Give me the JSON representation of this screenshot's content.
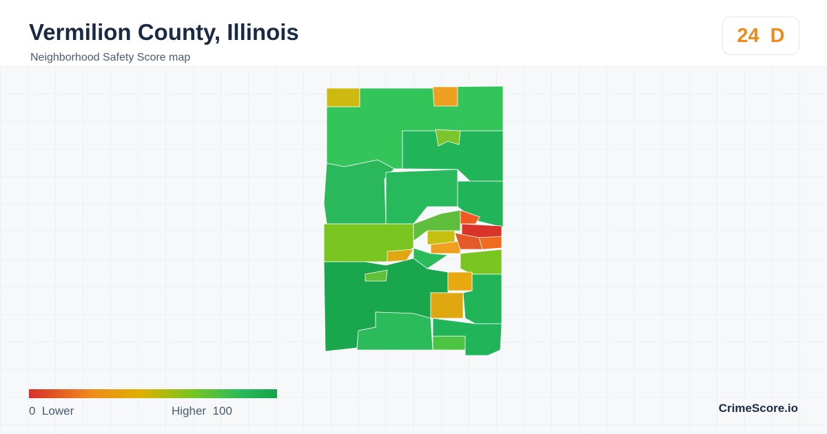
{
  "header": {
    "title": "Vermilion County, Illinois",
    "subtitle": "Neighborhood Safety Score map"
  },
  "score": {
    "value": "24",
    "grade": "D"
  },
  "legend": {
    "min": 0,
    "min_label": "Lower",
    "max_label": "Higher",
    "max": 100
  },
  "brand": "CrimeScore.io"
}
